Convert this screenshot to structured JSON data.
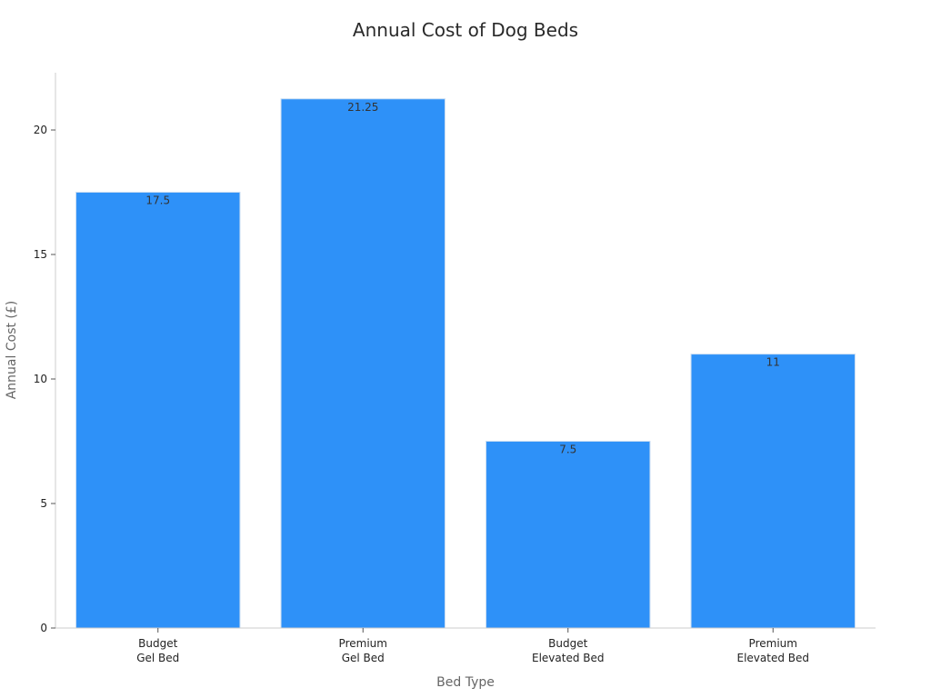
{
  "chart_data": {
    "type": "bar",
    "title": "Annual Cost of Dog Beds",
    "xlabel": "Bed Type",
    "ylabel": "Annual Cost (£)",
    "categories": [
      [
        "Budget",
        "Gel Bed"
      ],
      [
        "Premium",
        "Gel Bed"
      ],
      [
        "Budget",
        "Elevated Bed"
      ],
      [
        "Premium",
        "Elevated Bed"
      ]
    ],
    "values": [
      17.5,
      21.25,
      7.5,
      11
    ],
    "value_labels": [
      "17.5",
      "21.25",
      "7.5",
      "11"
    ],
    "yticks": [
      0,
      5,
      10,
      15,
      20
    ],
    "ylim": [
      0,
      22.3
    ],
    "grid": false,
    "legend": "none",
    "colors": {
      "bar": "#2e91f8",
      "axis": "#cccccc"
    }
  }
}
